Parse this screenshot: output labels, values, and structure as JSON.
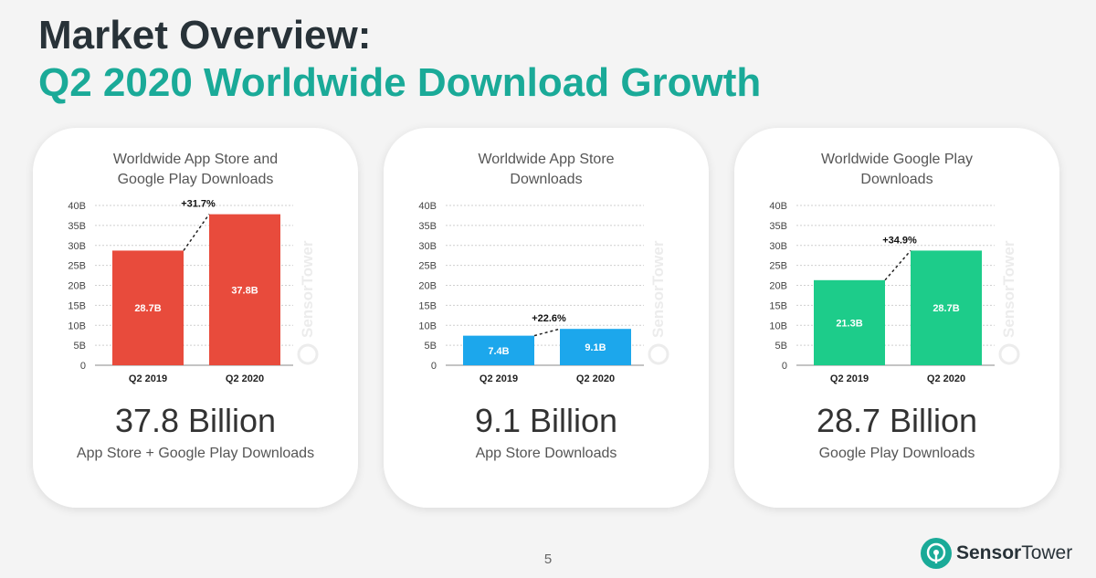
{
  "header": {
    "title_line1": "Market Overview:",
    "title_line2": "Q2 2020 Worldwide Download Growth"
  },
  "colors": {
    "title_dark": "#283238",
    "title_accent": "#1aaa98",
    "bar_combined": "#e84b3c",
    "bar_app_store": "#1ca7ec",
    "bar_google_play": "#1dcc8a"
  },
  "watermark": "SensorTower",
  "chart_data": [
    {
      "type": "bar",
      "title_lines": [
        "Worldwide App Store and",
        "Google Play Downloads"
      ],
      "categories": [
        "Q2 2019",
        "Q2 2020"
      ],
      "values": [
        28.7,
        37.8
      ],
      "value_labels": [
        "28.7B",
        "37.8B"
      ],
      "growth_label": "+31.7%",
      "yticks": [
        "0",
        "5B",
        "10B",
        "15B",
        "20B",
        "25B",
        "30B",
        "35B",
        "40B"
      ],
      "ylim": [
        0,
        40
      ],
      "grid": true,
      "color": "#e84b3c",
      "big_value": "37.8 Billion",
      "big_caption": "App Store + Google Play Downloads"
    },
    {
      "type": "bar",
      "title_lines": [
        "Worldwide App Store",
        "Downloads"
      ],
      "categories": [
        "Q2 2019",
        "Q2 2020"
      ],
      "values": [
        7.4,
        9.1
      ],
      "value_labels": [
        "7.4B",
        "9.1B"
      ],
      "growth_label": "+22.6%",
      "yticks": [
        "0",
        "5B",
        "10B",
        "15B",
        "20B",
        "25B",
        "30B",
        "35B",
        "40B"
      ],
      "ylim": [
        0,
        40
      ],
      "grid": true,
      "color": "#1ca7ec",
      "big_value": "9.1 Billion",
      "big_caption": "App Store Downloads"
    },
    {
      "type": "bar",
      "title_lines": [
        "Worldwide Google Play",
        "Downloads"
      ],
      "categories": [
        "Q2 2019",
        "Q2 2020"
      ],
      "values": [
        21.3,
        28.7
      ],
      "value_labels": [
        "21.3B",
        "28.7B"
      ],
      "growth_label": "+34.9%",
      "yticks": [
        "0",
        "5B",
        "10B",
        "15B",
        "20B",
        "25B",
        "30B",
        "35B",
        "40B"
      ],
      "ylim": [
        0,
        40
      ],
      "grid": true,
      "color": "#1dcc8a",
      "big_value": "28.7 Billion",
      "big_caption": "Google Play Downloads"
    }
  ],
  "footer": {
    "page_number": "5",
    "brand_sensor": "Sensor",
    "brand_tower": "Tower"
  }
}
